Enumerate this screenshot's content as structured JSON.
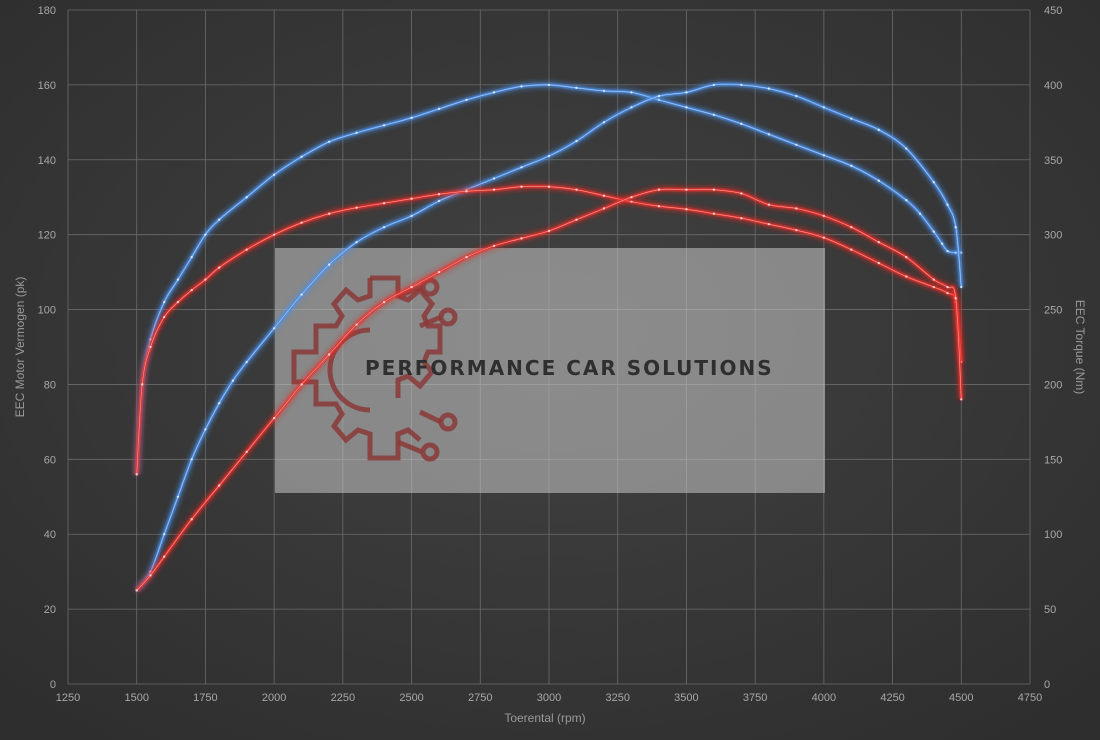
{
  "chart_data": {
    "type": "line",
    "xlabel": "Toerental (rpm)",
    "ylabel_left": "EEC Motor Vermogen (pk)",
    "ylabel_right": "EEC Torque (Nm)",
    "xlim": [
      1250,
      4750
    ],
    "ylim_left": [
      0,
      180
    ],
    "ylim_right": [
      0,
      450
    ],
    "xticks": [
      "1250",
      "1500",
      "1750",
      "2000",
      "2250",
      "2500",
      "2750",
      "3000",
      "3250",
      "3500",
      "3750",
      "4000",
      "4250",
      "4500",
      "4750"
    ],
    "yticks_left": [
      "0",
      "20",
      "40",
      "60",
      "80",
      "100",
      "120",
      "140",
      "160",
      "180"
    ],
    "yticks_right": [
      "0",
      "50",
      "100",
      "150",
      "200",
      "250",
      "300",
      "350",
      "400",
      "450"
    ],
    "grid": true,
    "colors": {
      "tuned": "#4d8fe6",
      "stock": "#e8302e",
      "background": "#3a3a3a"
    },
    "series": [
      {
        "axis": "right",
        "color": "#4d8fe6",
        "points": [
          [
            1500,
            140
          ],
          [
            1520,
            200
          ],
          [
            1550,
            230
          ],
          [
            1600,
            255
          ],
          [
            1650,
            270
          ],
          [
            1700,
            285
          ],
          [
            1750,
            300
          ],
          [
            1800,
            310
          ],
          [
            1900,
            325
          ],
          [
            2000,
            340
          ],
          [
            2100,
            352
          ],
          [
            2200,
            362
          ],
          [
            2300,
            368
          ],
          [
            2400,
            373
          ],
          [
            2500,
            378
          ],
          [
            2600,
            384
          ],
          [
            2700,
            390
          ],
          [
            2800,
            395
          ],
          [
            2900,
            399
          ],
          [
            3000,
            400
          ],
          [
            3100,
            398
          ],
          [
            3200,
            396
          ],
          [
            3300,
            395
          ],
          [
            3400,
            390
          ],
          [
            3500,
            385
          ],
          [
            3600,
            380
          ],
          [
            3700,
            374
          ],
          [
            3800,
            367
          ],
          [
            3900,
            360
          ],
          [
            4000,
            353
          ],
          [
            4100,
            346
          ],
          [
            4200,
            336
          ],
          [
            4300,
            323
          ],
          [
            4350,
            314
          ],
          [
            4400,
            302
          ],
          [
            4430,
            294
          ],
          [
            4450,
            289
          ],
          [
            4480,
            288
          ],
          [
            4500,
            288
          ]
        ]
      },
      {
        "axis": "left",
        "color": "#4d8fe6",
        "points": [
          [
            1500,
            25
          ],
          [
            1550,
            30
          ],
          [
            1600,
            40
          ],
          [
            1650,
            50
          ],
          [
            1700,
            60
          ],
          [
            1750,
            68
          ],
          [
            1800,
            75
          ],
          [
            1850,
            81
          ],
          [
            1900,
            86
          ],
          [
            2000,
            95
          ],
          [
            2100,
            104
          ],
          [
            2200,
            112
          ],
          [
            2300,
            118
          ],
          [
            2400,
            122
          ],
          [
            2500,
            125
          ],
          [
            2600,
            129
          ],
          [
            2700,
            132
          ],
          [
            2800,
            135
          ],
          [
            2900,
            138
          ],
          [
            3000,
            141
          ],
          [
            3100,
            145
          ],
          [
            3200,
            150
          ],
          [
            3300,
            154
          ],
          [
            3400,
            157
          ],
          [
            3500,
            158
          ],
          [
            3600,
            160
          ],
          [
            3700,
            160
          ],
          [
            3800,
            159
          ],
          [
            3900,
            157
          ],
          [
            4000,
            154
          ],
          [
            4100,
            151
          ],
          [
            4200,
            148
          ],
          [
            4300,
            143
          ],
          [
            4400,
            134
          ],
          [
            4450,
            128
          ],
          [
            4480,
            122
          ],
          [
            4500,
            106
          ]
        ]
      },
      {
        "axis": "right",
        "color": "#e8302e",
        "points": [
          [
            1500,
            140
          ],
          [
            1520,
            200
          ],
          [
            1550,
            225
          ],
          [
            1600,
            245
          ],
          [
            1650,
            255
          ],
          [
            1700,
            263
          ],
          [
            1750,
            270
          ],
          [
            1800,
            278
          ],
          [
            1900,
            290
          ],
          [
            2000,
            300
          ],
          [
            2100,
            308
          ],
          [
            2200,
            314
          ],
          [
            2300,
            318
          ],
          [
            2400,
            321
          ],
          [
            2500,
            324
          ],
          [
            2600,
            327
          ],
          [
            2700,
            329
          ],
          [
            2800,
            330
          ],
          [
            2900,
            332
          ],
          [
            3000,
            332
          ],
          [
            3100,
            330
          ],
          [
            3200,
            326
          ],
          [
            3300,
            322
          ],
          [
            3400,
            319
          ],
          [
            3500,
            317
          ],
          [
            3600,
            314
          ],
          [
            3700,
            311
          ],
          [
            3800,
            307
          ],
          [
            3900,
            303
          ],
          [
            4000,
            298
          ],
          [
            4100,
            290
          ],
          [
            4200,
            281
          ],
          [
            4300,
            272
          ],
          [
            4400,
            265
          ],
          [
            4450,
            261
          ],
          [
            4480,
            255
          ],
          [
            4500,
            215
          ]
        ]
      },
      {
        "axis": "left",
        "color": "#e8302e",
        "points": [
          [
            1500,
            25
          ],
          [
            1550,
            29
          ],
          [
            1600,
            34
          ],
          [
            1700,
            44
          ],
          [
            1800,
            53
          ],
          [
            1900,
            62
          ],
          [
            2000,
            71
          ],
          [
            2100,
            80
          ],
          [
            2200,
            88
          ],
          [
            2300,
            96
          ],
          [
            2400,
            102
          ],
          [
            2500,
            106
          ],
          [
            2600,
            110
          ],
          [
            2700,
            114
          ],
          [
            2800,
            117
          ],
          [
            2900,
            119
          ],
          [
            3000,
            121
          ],
          [
            3100,
            124
          ],
          [
            3200,
            127
          ],
          [
            3300,
            130
          ],
          [
            3400,
            132
          ],
          [
            3500,
            132
          ],
          [
            3600,
            132
          ],
          [
            3700,
            131
          ],
          [
            3800,
            128
          ],
          [
            3900,
            127
          ],
          [
            4000,
            125
          ],
          [
            4100,
            122
          ],
          [
            4200,
            118
          ],
          [
            4300,
            114
          ],
          [
            4400,
            108
          ],
          [
            4450,
            106
          ],
          [
            4480,
            103
          ],
          [
            4500,
            76
          ]
        ]
      }
    ]
  },
  "watermark": {
    "text": "PERFORMANCE CAR SOLUTIONS"
  }
}
